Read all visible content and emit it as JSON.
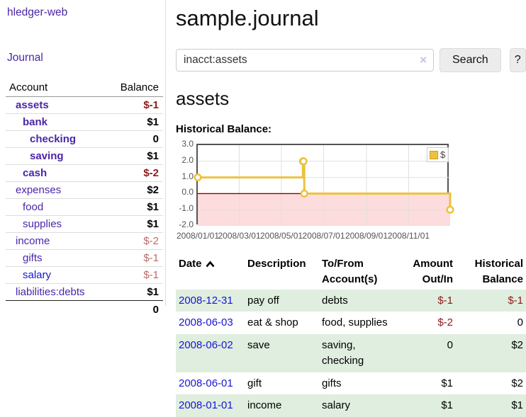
{
  "app": {
    "brand": "hledger-web",
    "nav_journal": "Journal"
  },
  "sidebar": {
    "accounts": {
      "headers": [
        "Account",
        "Balance"
      ],
      "rows": [
        {
          "name": "assets",
          "indent": 1,
          "strong": true,
          "link_color": "purple",
          "balance": "$-1",
          "balance_class": "neg-strong"
        },
        {
          "name": "bank",
          "indent": 2,
          "strong": true,
          "link_color": "purple",
          "balance": "$1",
          "balance_class": "strong"
        },
        {
          "name": "checking",
          "indent": 3,
          "strong": true,
          "link_color": "purple",
          "balance": "0",
          "balance_class": "strong"
        },
        {
          "name": "saving",
          "indent": 3,
          "strong": true,
          "link_color": "purple",
          "balance": "$1",
          "balance_class": "strong"
        },
        {
          "name": "cash",
          "indent": 2,
          "strong": true,
          "link_color": "purple",
          "balance": "$-2",
          "balance_class": "neg-strong"
        },
        {
          "name": "expenses",
          "indent": 1,
          "strong": false,
          "link_color": "purple",
          "balance": "$2",
          "balance_class": "strong"
        },
        {
          "name": "food",
          "indent": 2,
          "strong": false,
          "link_color": "purple",
          "balance": "$1",
          "balance_class": "strong"
        },
        {
          "name": "supplies",
          "indent": 2,
          "strong": false,
          "link_color": "purple",
          "balance": "$1",
          "balance_class": "strong"
        },
        {
          "name": "income",
          "indent": 1,
          "strong": false,
          "link_color": "purple",
          "balance": "$-2",
          "balance_class": "neg-pale"
        },
        {
          "name": "gifts",
          "indent": 2,
          "strong": false,
          "link_color": "purple",
          "balance": "$-1",
          "balance_class": "neg-pale"
        },
        {
          "name": "salary",
          "indent": 2,
          "strong": false,
          "link_color": "blue",
          "balance": "$-1",
          "balance_class": "neg-pale"
        },
        {
          "name": "liabilities:debts",
          "indent": 1,
          "strong": false,
          "link_color": "purple",
          "balance": "$1",
          "balance_class": "strong"
        }
      ],
      "total": "0"
    }
  },
  "header": {
    "title": "sample.journal"
  },
  "search": {
    "value": "inacct:assets",
    "clear_icon": "×",
    "button_label": "Search",
    "help_label": "?"
  },
  "account_view": {
    "heading": "assets",
    "chart_label": "Historical Balance:"
  },
  "chart_data": {
    "type": "line",
    "step": true,
    "title": "Historical Balance:",
    "series": [
      {
        "name": "$",
        "color": "#edc240",
        "points": [
          [
            "2008-01-01",
            1
          ],
          [
            "2008-06-01",
            2
          ],
          [
            "2008-06-02",
            2
          ],
          [
            "2008-06-03",
            0
          ],
          [
            "2008-12-31",
            -1
          ]
        ]
      }
    ],
    "x_range": [
      "2008-01-01",
      "2008-12-31"
    ],
    "ylim": [
      -2,
      3
    ],
    "y_ticks": [
      3.0,
      2.0,
      1.0,
      0.0,
      -1.0,
      -2.0
    ],
    "x_tick_labels": [
      "2008/01/01",
      "2008/03/01",
      "2008/05/01",
      "2008/07/01",
      "2008/09/01",
      "2008/11/01"
    ],
    "legend": {
      "label": "$",
      "position": "top-right"
    },
    "grid": true,
    "negative_region_color": "#fcdcdc",
    "zero_line_color": "#8b0000",
    "gridline_color": "#e0e0e0",
    "axis_text_color": "#545454"
  },
  "register": {
    "headers": [
      {
        "label": "Date",
        "align": "l",
        "sort": "asc"
      },
      {
        "label": "Description",
        "align": "l"
      },
      {
        "label": "To/From Account(s)",
        "align": "l"
      },
      {
        "label": "Amount Out/In",
        "align": "r"
      },
      {
        "label": "Historical Balance",
        "align": "r"
      }
    ],
    "rows": [
      {
        "date": "2008-12-31",
        "description": "pay off",
        "accounts": "debts",
        "amount": "$-1",
        "amount_class": "neg",
        "balance": "$-1",
        "balance_class": "neg"
      },
      {
        "date": "2008-06-03",
        "description": "eat & shop",
        "accounts": "food, supplies",
        "amount": "$-2",
        "amount_class": "neg",
        "balance": "0",
        "balance_class": ""
      },
      {
        "date": "2008-06-02",
        "description": "save",
        "accounts": "saving, checking",
        "amount": "0",
        "amount_class": "",
        "balance": "$2",
        "balance_class": ""
      },
      {
        "date": "2008-06-01",
        "description": "gift",
        "accounts": "gifts",
        "amount": "$1",
        "amount_class": "",
        "balance": "$2",
        "balance_class": ""
      },
      {
        "date": "2008-01-01",
        "description": "income",
        "accounts": "salary",
        "amount": "$1",
        "amount_class": "",
        "balance": "$1",
        "balance_class": ""
      }
    ]
  }
}
